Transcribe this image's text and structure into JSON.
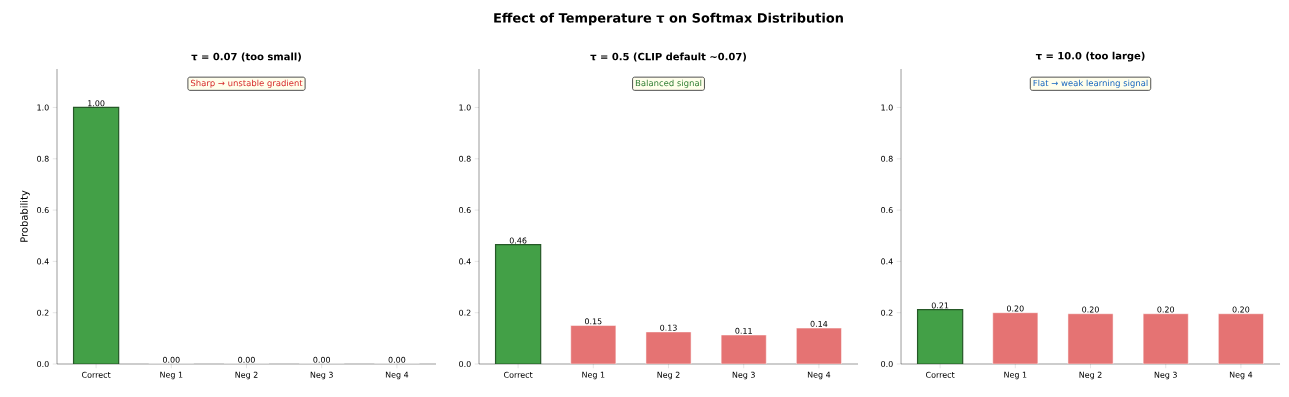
{
  "chart_data": [
    {
      "type": "bar",
      "subtitle": "τ = 0.07  (too small)",
      "ylabel": "Probability",
      "categories": [
        "Correct",
        "Neg 1",
        "Neg 2",
        "Neg 3",
        "Neg 4"
      ],
      "values": [
        1.0,
        0.0,
        0.0,
        0.0,
        0.0
      ],
      "colors": [
        "#43a047",
        "#e57373",
        "#e57373",
        "#e57373",
        "#e57373"
      ],
      "value_labels": [
        "1.00",
        "0.00",
        "0.00",
        "0.00",
        "0.00"
      ],
      "ylim": [
        0,
        1.15
      ],
      "yticks": [
        {
          "value": 0,
          "label": "0.0"
        },
        {
          "value": 0.2,
          "label": "0.2"
        },
        {
          "value": 0.4,
          "label": "0.4"
        },
        {
          "value": 0.6,
          "label": "0.6"
        },
        {
          "value": 0.8,
          "label": "0.8"
        },
        {
          "value": 1,
          "label": "1.0"
        }
      ],
      "annotations": [
        "Sharp → unstable gradient"
      ]
    },
    {
      "type": "bar",
      "title": "Effect of Temperature τ on Softmax Distribution",
      "subtitle": "τ = 0.5  (CLIP default ~0.07)",
      "categories": [
        "Correct",
        "Neg 1",
        "Neg 2",
        "Neg 3",
        "Neg 4"
      ],
      "values": [
        0.465,
        0.15,
        0.125,
        0.113,
        0.14
      ],
      "colors": [
        "#43a047",
        "#e57373",
        "#e57373",
        "#e57373",
        "#e57373"
      ],
      "value_labels": [
        "0.46",
        "0.15",
        "0.13",
        "0.11",
        "0.14"
      ],
      "ylim": [
        0,
        1.15
      ],
      "yticks": [
        {
          "value": 0,
          "label": "0.0"
        },
        {
          "value": 0.2,
          "label": "0.2"
        },
        {
          "value": 0.4,
          "label": "0.4"
        },
        {
          "value": 0.6,
          "label": "0.6"
        },
        {
          "value": 0.8,
          "label": "0.8"
        },
        {
          "value": 1,
          "label": "1.0"
        }
      ],
      "annotations": [
        "Balanced signal"
      ]
    },
    {
      "type": "bar",
      "subtitle": "τ = 10.0  (too large)",
      "categories": [
        "Correct",
        "Neg 1",
        "Neg 2",
        "Neg 3",
        "Neg 4"
      ],
      "values": [
        0.212,
        0.2,
        0.196,
        0.196,
        0.196
      ],
      "colors": [
        "#43a047",
        "#e57373",
        "#e57373",
        "#e57373",
        "#e57373"
      ],
      "value_labels": [
        "0.21",
        "0.20",
        "0.20",
        "0.20",
        "0.20"
      ],
      "ylim": [
        0,
        1.15
      ],
      "yticks": [
        {
          "value": 0,
          "label": "0.0"
        },
        {
          "value": 0.2,
          "label": "0.2"
        },
        {
          "value": 0.4,
          "label": "0.4"
        },
        {
          "value": 0.6,
          "label": "0.6"
        },
        {
          "value": 0.8,
          "label": "0.8"
        },
        {
          "value": 1,
          "label": "1.0"
        }
      ],
      "annotations": [
        "Flat → weak learning signal"
      ]
    }
  ]
}
